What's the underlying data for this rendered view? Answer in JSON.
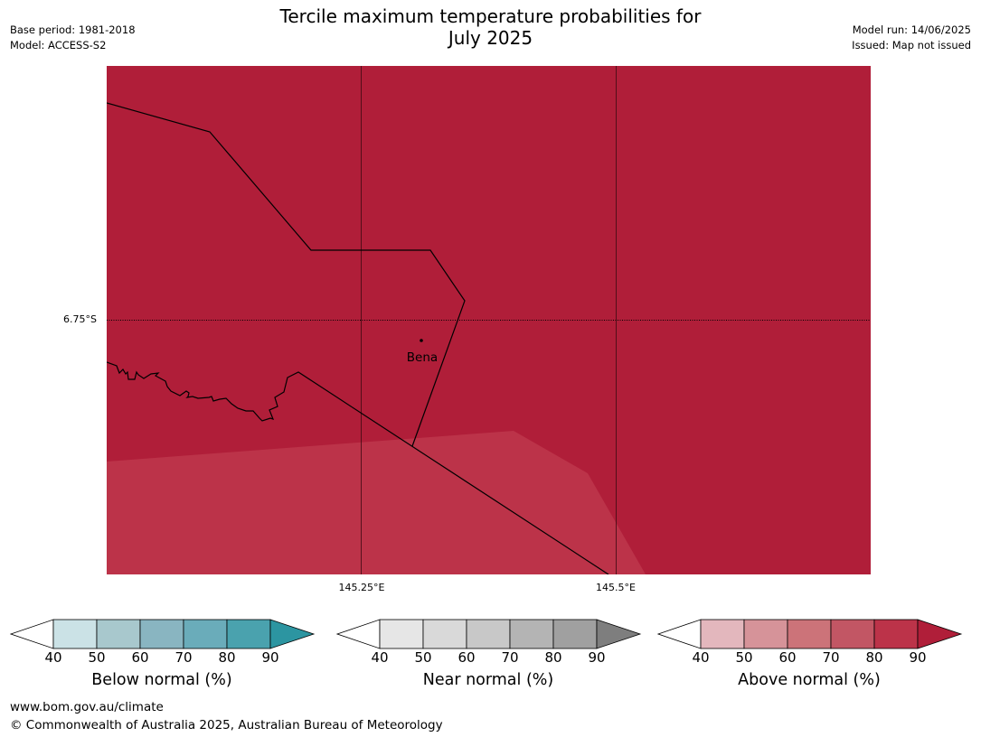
{
  "header": {
    "title_line1": "Tercile maximum temperature probabilities for",
    "title_line2": "July 2025",
    "base_period": "Base period: 1981-2018",
    "model": "Model: ACCESS-S2",
    "model_run": "Model run: 14/06/2025",
    "issued": "Issued: Map not issued"
  },
  "map": {
    "lat_label": "6.75°S",
    "lon_labels": [
      "145.25°E",
      "145.5°E"
    ],
    "town": "Bena",
    "colors": {
      "above_80_90": "#b01e39",
      "above_70_80": "#bc3349"
    }
  },
  "colorbars": [
    {
      "title": "Below normal (%)",
      "ticks": [
        "40",
        "50",
        "60",
        "70",
        "80",
        "90"
      ],
      "colors": [
        "#ffffff",
        "#cbe2e6",
        "#a8c8cd",
        "#89b5c1",
        "#6aacba",
        "#4aa2ae",
        "#2c95a1"
      ]
    },
    {
      "title": "Near normal (%)",
      "ticks": [
        "40",
        "50",
        "60",
        "70",
        "80",
        "90"
      ],
      "colors": [
        "#ffffff",
        "#e6e6e6",
        "#d9d9d9",
        "#c8c8c8",
        "#b4b4b4",
        "#a0a0a0",
        "#7e7e7e"
      ]
    },
    {
      "title": "Above normal (%)",
      "ticks": [
        "40",
        "50",
        "60",
        "70",
        "80",
        "90"
      ],
      "colors": [
        "#ffffff",
        "#e3b7bd",
        "#d69399",
        "#cc7379",
        "#c25664",
        "#bc3349",
        "#b01e39"
      ]
    }
  ],
  "footer": {
    "url": "www.bom.gov.au/climate",
    "copyright": "© Commonwealth of Australia 2025, Australian Bureau of Meteorology"
  }
}
